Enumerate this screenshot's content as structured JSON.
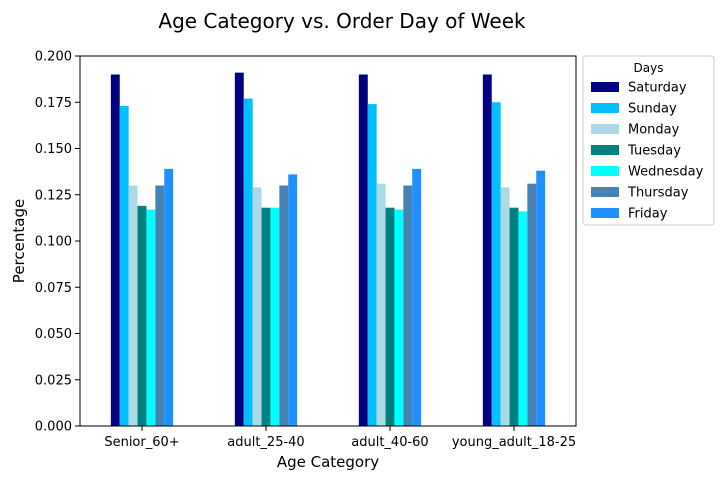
{
  "chart_data": {
    "type": "bar",
    "title": "Age Category vs. Order Day of Week",
    "xlabel": "Age Category",
    "ylabel": "Percentage",
    "categories": [
      "Senior_60+",
      "adult_25-40",
      "adult_40-60",
      "young_adult_18-25"
    ],
    "ylim": [
      0,
      0.2
    ],
    "yticks": [
      "0.000",
      "0.025",
      "0.050",
      "0.075",
      "0.100",
      "0.125",
      "0.150",
      "0.175",
      "0.200"
    ],
    "legend": {
      "title": "Days",
      "placement": "outside-upper-right"
    },
    "grid": false,
    "series": [
      {
        "name": "Saturday",
        "color": "#000080",
        "values": [
          0.19,
          0.191,
          0.19,
          0.19
        ]
      },
      {
        "name": "Sunday",
        "color": "#00bfff",
        "values": [
          0.173,
          0.177,
          0.174,
          0.175
        ]
      },
      {
        "name": "Monday",
        "color": "#add8e6",
        "values": [
          0.13,
          0.129,
          0.131,
          0.129
        ]
      },
      {
        "name": "Tuesday",
        "color": "#008080",
        "values": [
          0.119,
          0.118,
          0.118,
          0.118
        ]
      },
      {
        "name": "Wednesday",
        "color": "#00ffff",
        "values": [
          0.117,
          0.118,
          0.117,
          0.116
        ]
      },
      {
        "name": "Thursday",
        "color": "#4682b4",
        "values": [
          0.13,
          0.13,
          0.13,
          0.131
        ]
      },
      {
        "name": "Friday",
        "color": "#1e90ff",
        "values": [
          0.139,
          0.136,
          0.139,
          0.138
        ]
      }
    ]
  }
}
